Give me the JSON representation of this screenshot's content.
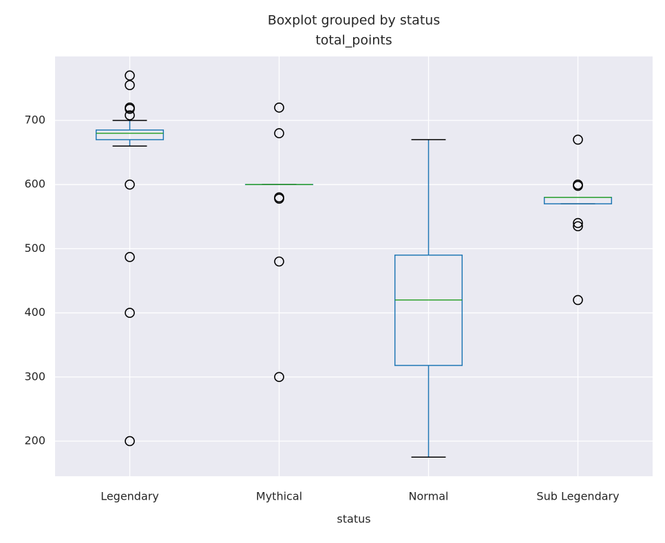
{
  "chart_data": {
    "type": "box",
    "title": "Boxplot grouped by status",
    "subtitle": "total_points",
    "x_label": "status",
    "categories": [
      "Legendary",
      "Mythical",
      "Normal",
      "Sub Legendary"
    ],
    "boxes": [
      {
        "low": 660,
        "q1": 670,
        "median": 680,
        "q3": 685,
        "high": 700,
        "outliers": [
          770,
          755,
          720,
          718,
          708,
          600,
          487,
          400,
          200
        ]
      },
      {
        "low": 600,
        "q1": 600,
        "median": 600,
        "q3": 600,
        "high": 600,
        "outliers": [
          720,
          680,
          580,
          578,
          480,
          300
        ]
      },
      {
        "low": 175,
        "q1": 318,
        "median": 420,
        "q3": 490,
        "high": 670,
        "outliers": []
      },
      {
        "low": 570,
        "q1": 570,
        "median": 580,
        "q3": 580,
        "high": 580,
        "outliers": [
          670,
          600,
          598,
          540,
          535,
          420
        ]
      }
    ],
    "box_color": "#1f77b4",
    "median_color": "#2ca02c",
    "cap_color": "#000000",
    "ylim": [
      145.25,
      799.75
    ],
    "yticks": [
      200,
      300,
      400,
      500,
      600,
      700
    ],
    "grid": true
  }
}
